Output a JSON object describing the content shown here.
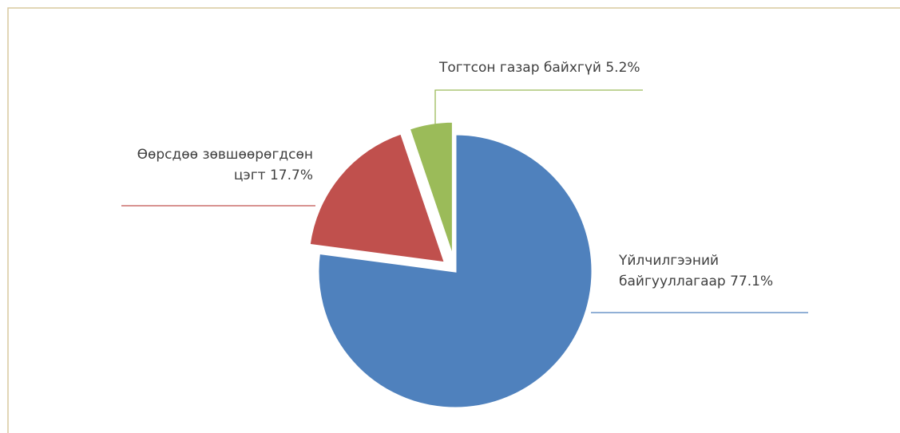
{
  "chart_data": {
    "type": "pie",
    "categories": [
      "Үйлчилгээний байгууллагаар",
      "Өөрсдөө зөвшөөрөгдсөн цэгт",
      "Тогтсон газар байхгүй"
    ],
    "values": [
      77.1,
      17.7,
      5.2
    ],
    "value_labels": [
      "77.1%",
      "17.7%",
      "5.2%"
    ],
    "colors": [
      "#4f81bd",
      "#c0504d",
      "#9bbb59"
    ]
  }
}
